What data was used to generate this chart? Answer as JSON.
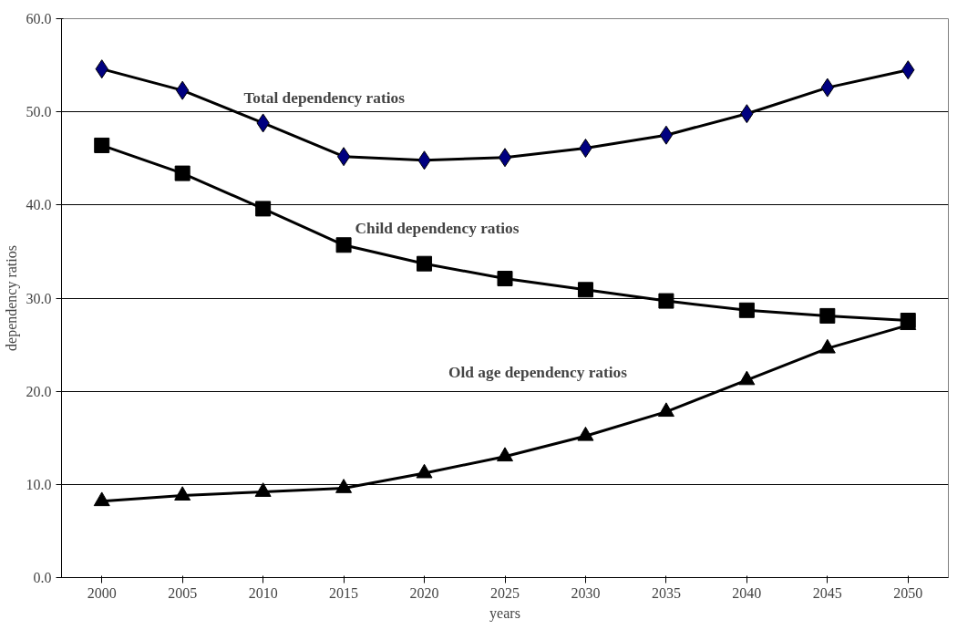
{
  "chart_data": {
    "type": "line",
    "xlabel": "years",
    "ylabel": "dependency ratios",
    "categories": [
      "2000",
      "2005",
      "2010",
      "2015",
      "2020",
      "2025",
      "2030",
      "2035",
      "2040",
      "2045",
      "2050"
    ],
    "series": [
      {
        "name": "Total dependency ratios",
        "color": "#000080",
        "marker": "diamond",
        "values": [
          54.6,
          52.3,
          48.8,
          45.2,
          44.8,
          45.1,
          46.1,
          47.5,
          49.8,
          52.6,
          54.5
        ]
      },
      {
        "name": "Child dependency ratios",
        "color": "#000000",
        "marker": "square",
        "values": [
          46.4,
          43.4,
          39.6,
          35.7,
          33.7,
          32.1,
          30.9,
          29.7,
          28.7,
          28.1,
          27.6
        ]
      },
      {
        "name": "Old age dependency ratios",
        "color": "#000000",
        "marker": "triangle",
        "values": [
          8.2,
          8.8,
          9.2,
          9.6,
          11.2,
          13.0,
          15.2,
          17.8,
          21.2,
          24.6,
          27.1
        ]
      }
    ],
    "ylim": [
      0,
      60
    ],
    "yticks": [
      {
        "value": 0,
        "label": "0.0"
      },
      {
        "value": 10,
        "label": "10.0"
      },
      {
        "value": 20,
        "label": "20.0"
      },
      {
        "value": 30,
        "label": "30.0"
      },
      {
        "value": 40,
        "label": "40.0"
      },
      {
        "value": 50,
        "label": "50.0"
      },
      {
        "value": 60,
        "label": "60.0"
      }
    ],
    "grid": "y",
    "legend": false,
    "line_style": "solid"
  }
}
